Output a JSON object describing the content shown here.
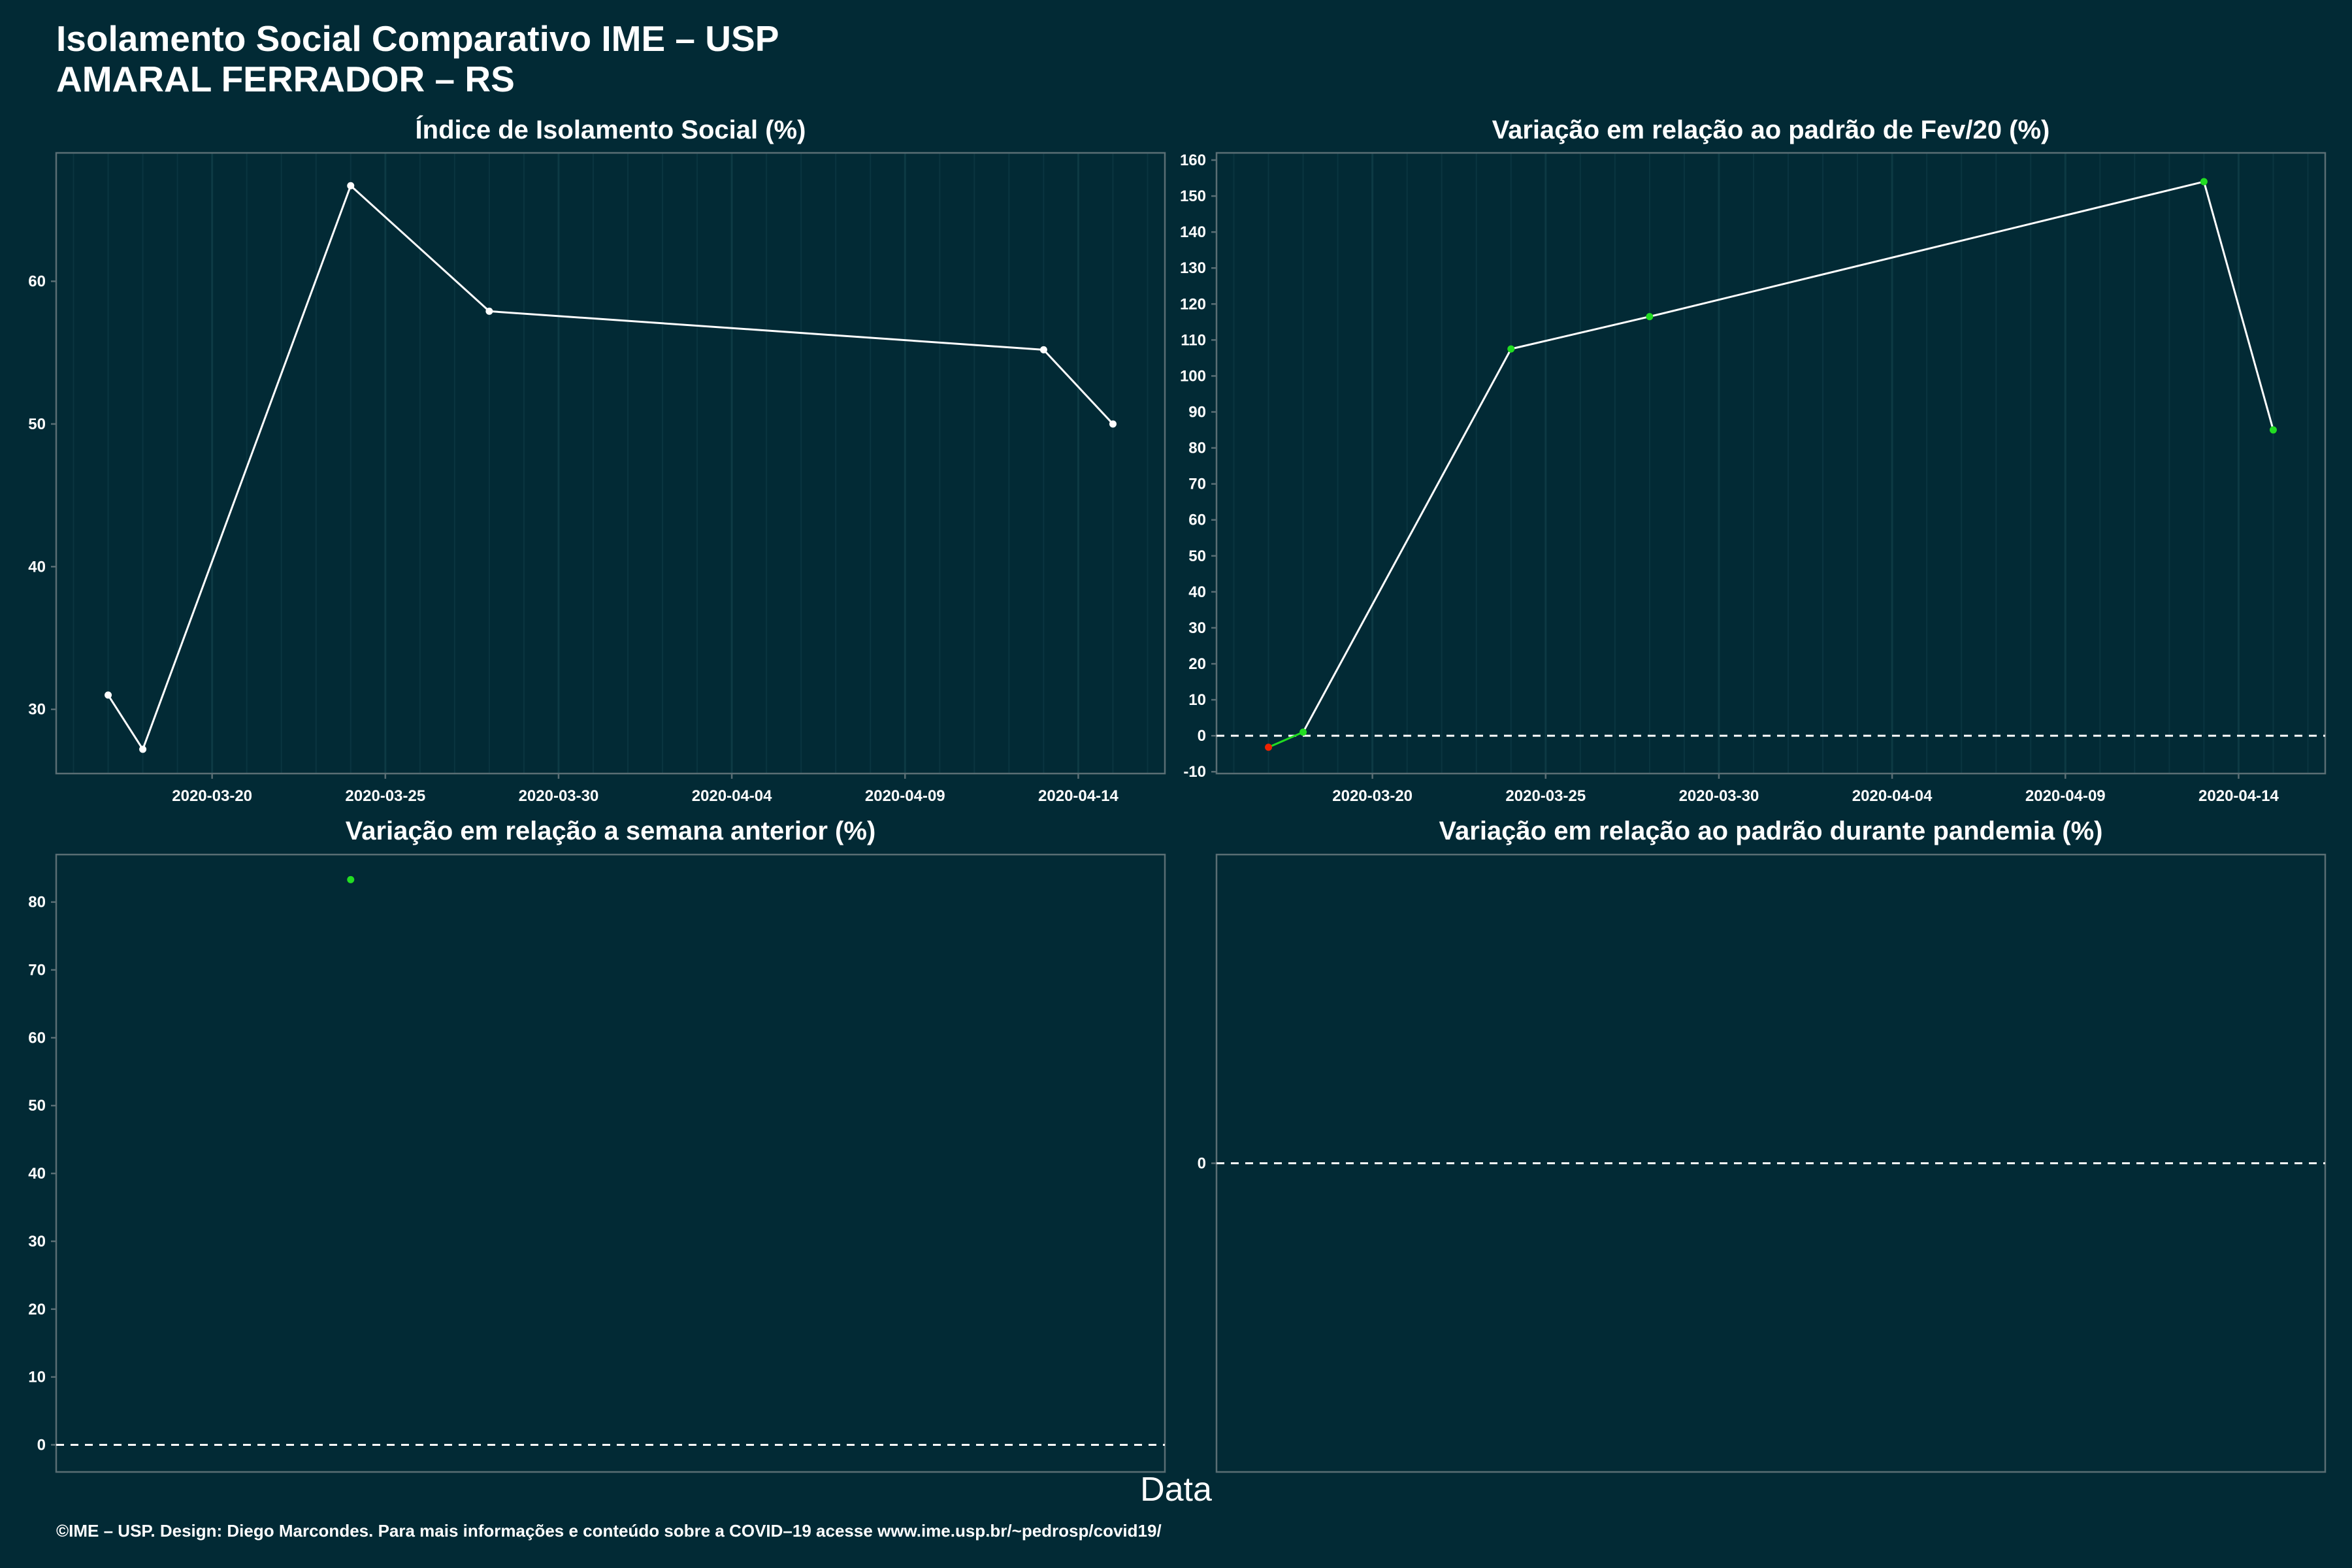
{
  "header": {
    "title": "Isolamento Social Comparativo IME – USP",
    "subtitle": "AMARAL FERRADOR – RS"
  },
  "x_axis_title": "Data",
  "footer": "©IME – USP. Design: Diego Marcondes. Para mais informações e conteúdo sobre a COVID–19 acesse www.ime.usp.br/~pedrosp/covid19/",
  "colors": {
    "background": "#022a35",
    "line": "#ffffff",
    "positive": "#22dd22",
    "negative": "#ee2200"
  },
  "chart_data": [
    {
      "type": "line",
      "title": "Índice de Isolamento Social (%)",
      "x": [
        "2020-03-17",
        "2020-03-18",
        "2020-03-24",
        "2020-03-28",
        "2020-04-13",
        "2020-04-15"
      ],
      "y": [
        31.0,
        27.2,
        66.7,
        57.9,
        55.2,
        50.0
      ],
      "ylim": [
        25.5,
        69
      ],
      "yticks": [
        30,
        40,
        50,
        60
      ],
      "xticks": [
        "2020-03-20",
        "2020-03-25",
        "2020-03-30",
        "2020-04-04",
        "2020-04-09",
        "2020-04-14"
      ],
      "marker_color": "#ffffff"
    },
    {
      "type": "line",
      "title": "Variação em relação ao padrão de Fev/20 (%)",
      "x": [
        "2020-03-17",
        "2020-03-18",
        "2020-03-24",
        "2020-03-28",
        "2020-04-13",
        "2020-04-15"
      ],
      "y": [
        -3.2,
        1.0,
        107.5,
        116.5,
        154.0,
        85.0
      ],
      "ylim": [
        -10.5,
        162
      ],
      "yticks": [
        -10,
        0,
        10,
        20,
        30,
        40,
        50,
        60,
        70,
        80,
        90,
        100,
        110,
        120,
        130,
        140,
        150,
        160
      ],
      "xticks": [
        "2020-03-20",
        "2020-03-25",
        "2020-03-30",
        "2020-04-04",
        "2020-04-09",
        "2020-04-14"
      ],
      "zero_line": true
    },
    {
      "type": "scatter",
      "title": "Variação em relação a semana anterior (%)",
      "x": [
        "2020-03-24"
      ],
      "y": [
        83.3
      ],
      "ylim": [
        -4,
        87
      ],
      "yticks": [
        0,
        10,
        20,
        30,
        40,
        50,
        60,
        70,
        80
      ],
      "xticks": [],
      "zero_line": true
    },
    {
      "type": "line",
      "title": "Variação em relação ao padrão durante pandemia (%)",
      "x": [],
      "y": [],
      "ylim": [
        -1,
        1
      ],
      "yticks": [
        0
      ],
      "xticks": [],
      "zero_line": true
    }
  ]
}
